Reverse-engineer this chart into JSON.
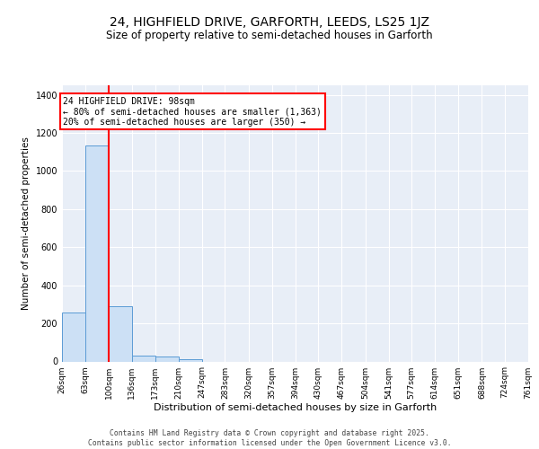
{
  "title": "24, HIGHFIELD DRIVE, GARFORTH, LEEDS, LS25 1JZ",
  "subtitle": "Size of property relative to semi-detached houses in Garforth",
  "xlabel": "Distribution of semi-detached houses by size in Garforth",
  "ylabel": "Number of semi-detached properties",
  "bin_edges": [
    26,
    63,
    100,
    136,
    173,
    210,
    247,
    283,
    320,
    357,
    394,
    430,
    467,
    504,
    541,
    577,
    614,
    651,
    688,
    724,
    761
  ],
  "bar_heights": [
    255,
    1135,
    290,
    30,
    25,
    13,
    0,
    0,
    0,
    0,
    0,
    0,
    0,
    0,
    0,
    0,
    0,
    0,
    0,
    0
  ],
  "bar_color": "#cce0f5",
  "bar_edge_color": "#5b9bd5",
  "red_line_x": 100,
  "annotation_line1": "24 HIGHFIELD DRIVE: 98sqm",
  "annotation_line2": "← 80% of semi-detached houses are smaller (1,363)",
  "annotation_line3": "20% of semi-detached houses are larger (350) →",
  "ylim": [
    0,
    1450
  ],
  "yticks": [
    0,
    200,
    400,
    600,
    800,
    1000,
    1200,
    1400
  ],
  "background_color": "#e8eef7",
  "footer_line1": "Contains HM Land Registry data © Crown copyright and database right 2025.",
  "footer_line2": "Contains public sector information licensed under the Open Government Licence v3.0.",
  "title_fontsize": 10,
  "subtitle_fontsize": 8.5,
  "ylabel_fontsize": 7.5,
  "xlabel_fontsize": 8,
  "tick_fontsize": 6.5,
  "annot_fontsize": 7,
  "footer_fontsize": 5.8
}
